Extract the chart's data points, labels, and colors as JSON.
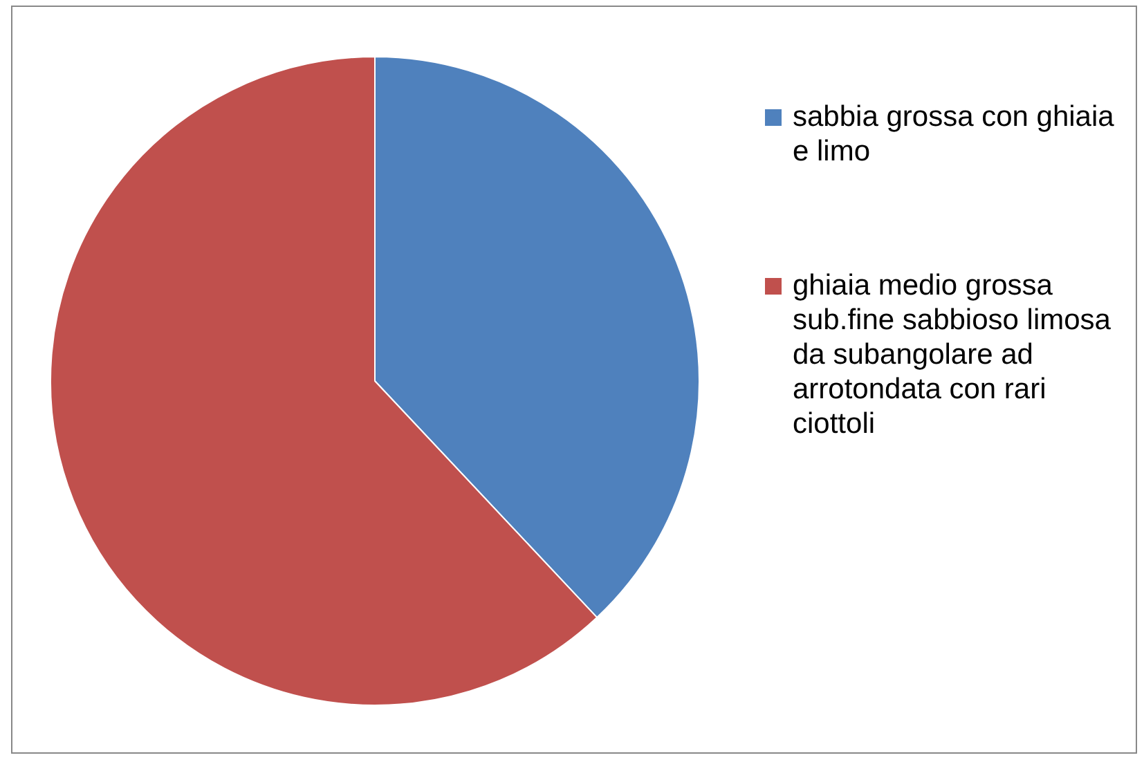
{
  "chart_data": {
    "type": "pie",
    "categories": [
      "sabbia grossa con ghiaia e limo",
      "ghiaia medio grossa sub.fine sabbioso limosa da subangolare ad arrotondata con rari ciottoli"
    ],
    "values": [
      38,
      62
    ],
    "colors": [
      "#4f81bd",
      "#c0504d"
    ],
    "legend": "right"
  }
}
